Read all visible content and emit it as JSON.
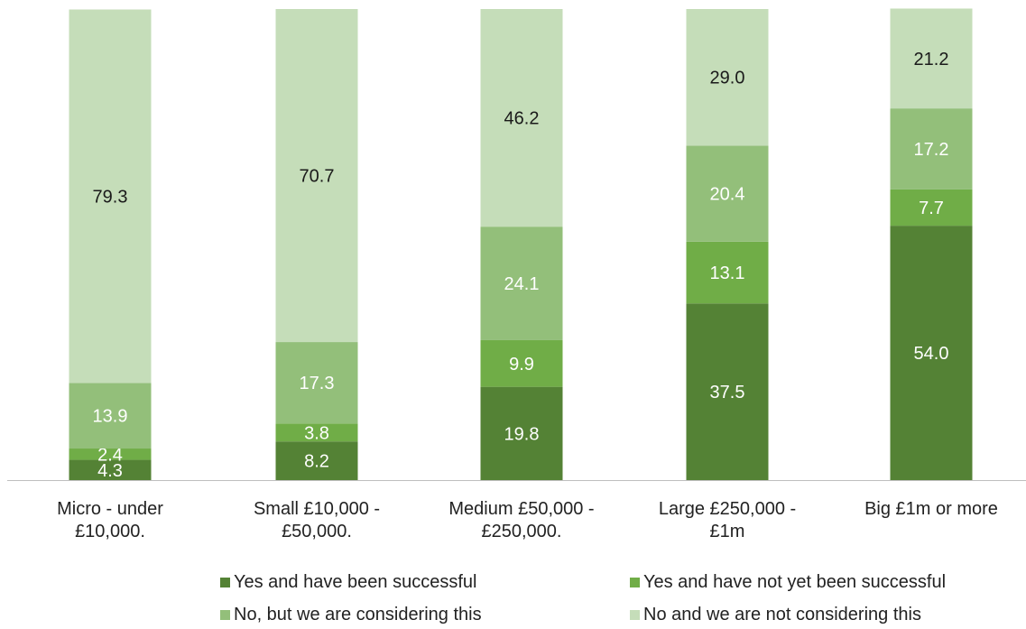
{
  "chart_data": {
    "type": "bar",
    "stacked": true,
    "categories": [
      [
        "Micro - under",
        "£10,000."
      ],
      [
        "Small £10,000 -",
        "£50,000."
      ],
      [
        "Medium £50,000 -",
        "£250,000."
      ],
      [
        "Large £250,000 -",
        "£1m"
      ],
      [
        "Big £1m or more"
      ]
    ],
    "series": [
      {
        "name": "Yes and have been successful",
        "color": "#548235",
        "label_color": "#ffffff",
        "values": [
          4.3,
          8.2,
          19.8,
          37.5,
          54.0
        ]
      },
      {
        "name": "Yes and have not yet been successful",
        "color": "#70AD47",
        "label_color": "#ffffff",
        "values": [
          2.4,
          3.8,
          9.9,
          13.1,
          7.7
        ]
      },
      {
        "name": "No, but we are considering this",
        "color": "#93BF7A",
        "label_color": "#ffffff",
        "values": [
          13.9,
          17.3,
          24.1,
          20.4,
          17.2
        ]
      },
      {
        "name": "No and we are not considering this",
        "color": "#C5DDB9",
        "label_color": "#1a1a1a",
        "values": [
          79.3,
          70.7,
          46.2,
          29.0,
          21.2
        ]
      }
    ],
    "ylim": [
      0,
      100
    ],
    "grid": false,
    "data_labels": true,
    "legend_position": "bottom"
  }
}
